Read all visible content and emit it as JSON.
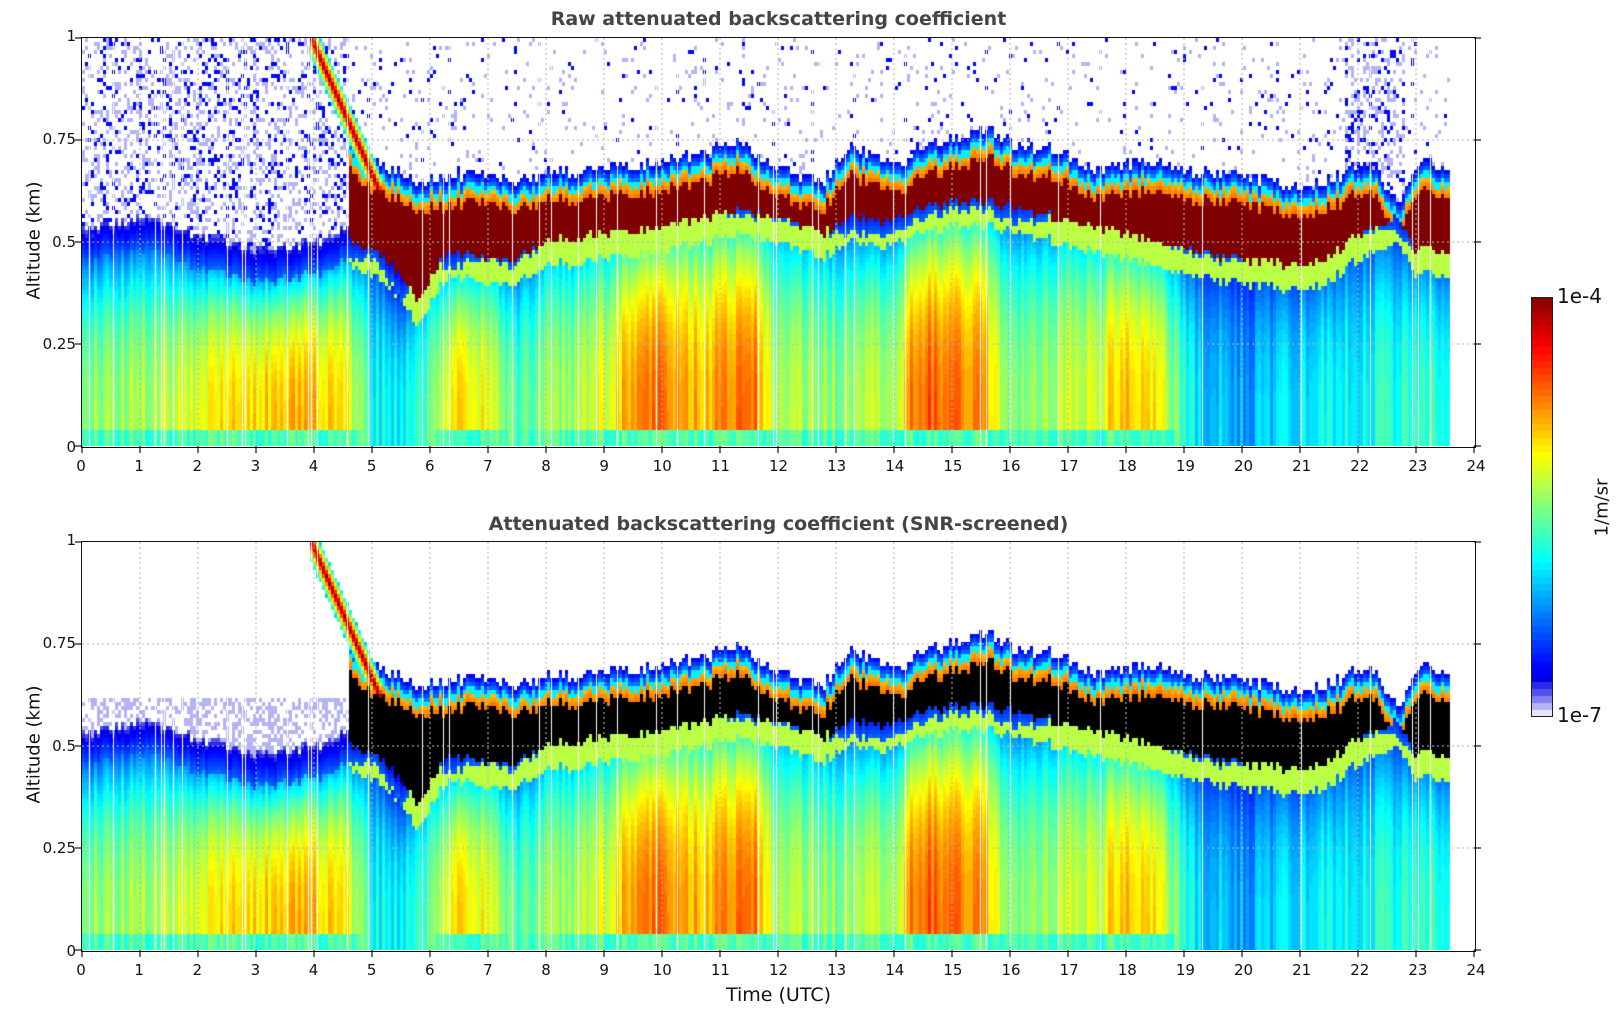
{
  "chart_data": [
    {
      "type": "heatmap",
      "title": "Raw attenuated backscattering coefficient",
      "xlabel": "",
      "ylabel": "Altitude (km)",
      "xlim": [
        0,
        24
      ],
      "ylim": [
        0,
        1
      ],
      "x_ticks": [
        "0",
        "1",
        "2",
        "3",
        "4",
        "5",
        "6",
        "7",
        "8",
        "9",
        "10",
        "11",
        "12",
        "13",
        "14",
        "15",
        "16",
        "17",
        "18",
        "19",
        "20",
        "21",
        "22",
        "23",
        "24"
      ],
      "y_ticks": [
        "0",
        "0.25",
        "0.5",
        "0.75",
        "1"
      ],
      "grid": true,
      "screened": false
    },
    {
      "type": "heatmap",
      "title": "Attenuated backscattering coefficient (SNR-screened)",
      "xlabel": "Time (UTC)",
      "ylabel": "Altitude (km)",
      "xlim": [
        0,
        24
      ],
      "ylim": [
        0,
        1
      ],
      "x_ticks": [
        "0",
        "1",
        "2",
        "3",
        "4",
        "5",
        "6",
        "7",
        "8",
        "9",
        "10",
        "11",
        "12",
        "13",
        "14",
        "15",
        "16",
        "17",
        "18",
        "19",
        "20",
        "21",
        "22",
        "23",
        "24"
      ],
      "y_ticks": [
        "0",
        "0.25",
        "0.5",
        "0.75",
        "1"
      ],
      "grid": true,
      "screened": true
    }
  ],
  "field": {
    "data_end_hour": 23.58,
    "cloud_keypoints_hour": [
      4.6,
      5.0,
      5.5,
      5.8,
      6.3,
      7.0,
      7.5,
      8.0,
      9.0,
      10.0,
      10.8,
      11.3,
      11.8,
      12.3,
      12.8,
      13.2,
      13.8,
      14.1,
      14.5,
      15.0,
      15.6,
      16.2,
      16.8,
      17.4,
      18.0,
      18.6,
      19.2,
      19.8,
      20.4,
      21.0,
      21.5,
      22.0,
      22.3,
      22.7,
      23.0,
      23.58
    ],
    "cloud_top_km": [
      0.72,
      0.66,
      0.64,
      0.62,
      0.63,
      0.64,
      0.62,
      0.64,
      0.65,
      0.67,
      0.69,
      0.72,
      0.66,
      0.64,
      0.62,
      0.7,
      0.68,
      0.66,
      0.7,
      0.72,
      0.75,
      0.7,
      0.7,
      0.65,
      0.66,
      0.67,
      0.64,
      0.64,
      0.62,
      0.6,
      0.62,
      0.66,
      0.66,
      0.56,
      0.66,
      0.66
    ],
    "cloud_base_km": [
      0.5,
      0.48,
      0.42,
      0.36,
      0.48,
      0.46,
      0.46,
      0.5,
      0.52,
      0.54,
      0.56,
      0.58,
      0.56,
      0.55,
      0.52,
      0.56,
      0.55,
      0.56,
      0.58,
      0.6,
      0.6,
      0.58,
      0.56,
      0.54,
      0.52,
      0.5,
      0.48,
      0.46,
      0.45,
      0.44,
      0.46,
      0.52,
      0.54,
      0.56,
      0.48,
      0.48
    ],
    "aerosol_keypoints_hour": [
      0,
      1,
      2,
      3,
      4,
      4.5,
      5,
      5.5,
      6,
      6.5,
      7,
      7.4,
      8,
      8.5,
      9,
      9.5,
      10,
      10.5,
      11,
      11.6,
      12,
      12.5,
      13,
      13.5,
      14,
      14.4,
      15,
      15.6,
      16,
      16.5,
      17,
      17.5,
      18,
      18.6,
      19,
      19.5,
      20,
      20.5,
      21,
      21.5,
      22,
      22.5,
      23,
      23.58
    ],
    "aerosol_level": [
      0.52,
      0.55,
      0.6,
      0.68,
      0.7,
      0.66,
      0.4,
      0.35,
      0.45,
      0.7,
      0.6,
      0.45,
      0.5,
      0.55,
      0.6,
      0.74,
      0.76,
      0.7,
      0.72,
      0.78,
      0.52,
      0.55,
      0.52,
      0.55,
      0.56,
      0.8,
      0.78,
      0.72,
      0.5,
      0.52,
      0.58,
      0.6,
      0.7,
      0.66,
      0.4,
      0.32,
      0.28,
      0.33,
      0.36,
      0.38,
      0.38,
      0.4,
      0.42,
      0.44
    ],
    "boundary_layer_top_km": [
      0.45,
      0.48,
      0.44,
      0.4,
      0.42,
      0.45,
      0.46,
      0.36,
      0.44,
      0.44,
      0.46,
      0.44,
      0.5,
      0.52,
      0.52,
      0.54,
      0.55,
      0.56,
      0.57,
      0.56,
      0.55,
      0.54,
      0.52,
      0.52,
      0.52,
      0.55,
      0.58,
      0.58,
      0.55,
      0.55,
      0.56,
      0.55,
      0.52,
      0.5,
      0.48,
      0.46,
      0.45,
      0.45,
      0.44,
      0.46,
      0.52,
      0.54,
      0.48,
      0.48
    ]
  },
  "colorbar": {
    "max_label": "1e-4",
    "min_label": "1e-7",
    "label": "1/m/sr",
    "colormap": "jet",
    "low_colors": [
      "#e6e6fb",
      "#b3b3f6",
      "#8080f0",
      "#5252ee",
      "#2b2be9"
    ]
  },
  "colors": {
    "title": "#444444",
    "grid": "#b4b4b4",
    "saturated_screened": "#000000"
  }
}
